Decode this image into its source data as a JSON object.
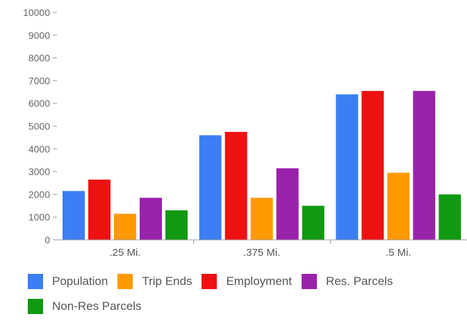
{
  "chart_data": {
    "type": "bar",
    "title": "",
    "xlabel": "",
    "ylabel": "",
    "ylim": [
      0,
      10000
    ],
    "yticks": [
      0,
      1000,
      2000,
      3000,
      4000,
      5000,
      6000,
      7000,
      8000,
      9000,
      10000
    ],
    "categories": [
      ".25 Mi.",
      ".375 Mi.",
      ".5 Mi."
    ],
    "series": [
      {
        "name": "Population",
        "color": "#3d7ef5",
        "values": [
          2150,
          4600,
          6400
        ]
      },
      {
        "name": "Employment",
        "color": "#ee1111",
        "values": [
          2650,
          4750,
          6550
        ]
      },
      {
        "name": "Trip Ends",
        "color": "#ff9900",
        "values": [
          1150,
          1850,
          2950
        ]
      },
      {
        "name": "Res. Parcels",
        "color": "#9922aa",
        "values": [
          1850,
          3150,
          6550
        ]
      },
      {
        "name": "Non-Res Parcels",
        "color": "#119911",
        "values": [
          1300,
          1500,
          2000
        ]
      }
    ],
    "legend_position": "bottom",
    "legend_order": [
      "Population",
      "Trip Ends",
      "Employment",
      "Res. Parcels",
      "Non-Res Parcels"
    ],
    "grid": false
  }
}
